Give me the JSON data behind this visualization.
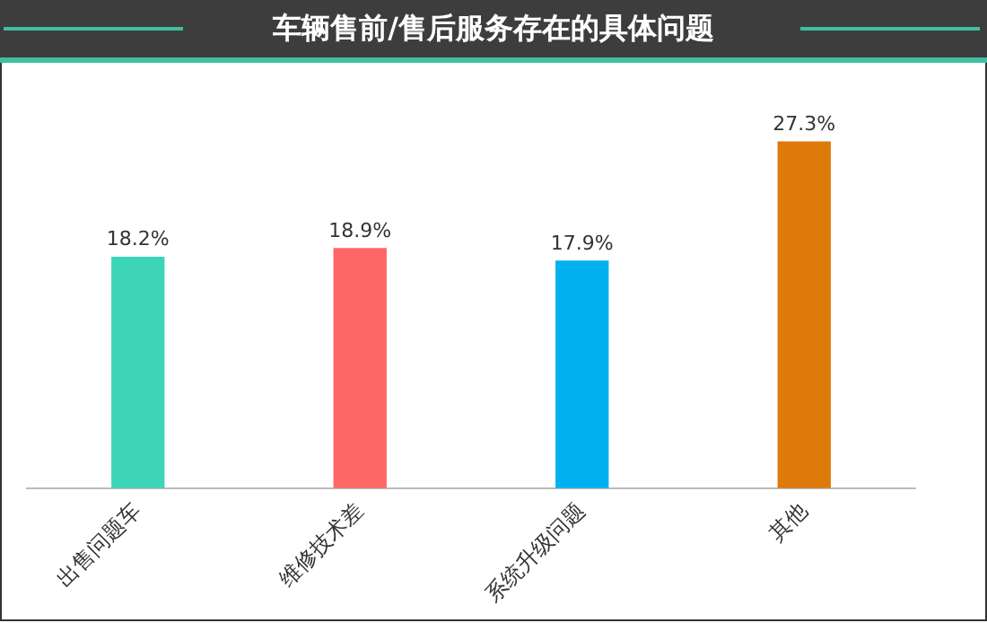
{
  "chart_data": {
    "type": "bar",
    "title": "车辆售前/售后服务存在的具体问题",
    "categories": [
      "出售问题车",
      "维修技术差",
      "系统升级问题",
      "其他"
    ],
    "values": [
      18.2,
      18.9,
      17.9,
      27.3
    ],
    "colors": [
      "#3dd5b8",
      "#ff6666",
      "#00b0ef",
      "#dd7a0a"
    ],
    "value_labels": [
      "18.2%",
      "18.9%",
      "17.9%",
      "27.3%"
    ],
    "grid": false,
    "legend": false
  }
}
